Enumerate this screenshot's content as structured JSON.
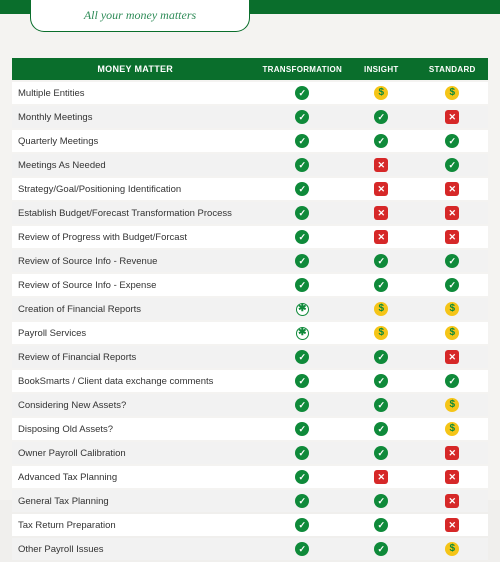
{
  "tagline": "All your money matters",
  "colors": {
    "brand_green": "#0a6e2c",
    "check_green": "#0f8a3a",
    "cross_red": "#d62828",
    "dollar_yellow": "#f5c518",
    "row_alt": "#f2f2f2",
    "row_bg": "#ffffff",
    "page_bg": "#f4f3f1"
  },
  "table": {
    "headers": {
      "label": "MONEY MATTER",
      "col1": "TRANSFORMATION",
      "col2": "INSIGHT",
      "col3": "STANDARD"
    },
    "icon_legend": {
      "check": "included",
      "cross": "not included",
      "dollar": "available for fee",
      "star": "special feature"
    },
    "rows": [
      {
        "label": "Multiple Entities",
        "c1": "check",
        "c2": "dollar",
        "c3": "dollar"
      },
      {
        "label": "Monthly Meetings",
        "c1": "check",
        "c2": "check",
        "c3": "cross"
      },
      {
        "label": "Quarterly Meetings",
        "c1": "check",
        "c2": "check",
        "c3": "check"
      },
      {
        "label": "Meetings As Needed",
        "c1": "check",
        "c2": "cross",
        "c3": "check"
      },
      {
        "label": "Strategy/Goal/Positioning Identification",
        "c1": "check",
        "c2": "cross",
        "c3": "cross"
      },
      {
        "label": "Establish Budget/Forecast Transformation Process",
        "c1": "check",
        "c2": "cross",
        "c3": "cross"
      },
      {
        "label": "Review of Progress with Budget/Forcast",
        "c1": "check",
        "c2": "cross",
        "c3": "cross"
      },
      {
        "label": "Review of Source Info - Revenue",
        "c1": "check",
        "c2": "check",
        "c3": "check"
      },
      {
        "label": "Review of Source Info - Expense",
        "c1": "check",
        "c2": "check",
        "c3": "check"
      },
      {
        "label": "Creation of Financial Reports",
        "c1": "star",
        "c2": "dollar",
        "c3": "dollar"
      },
      {
        "label": "Payroll Services",
        "c1": "star",
        "c2": "dollar",
        "c3": "dollar"
      },
      {
        "label": "Review of Financial Reports",
        "c1": "check",
        "c2": "check",
        "c3": "cross"
      },
      {
        "label": "BookSmarts / Client data exchange comments",
        "c1": "check",
        "c2": "check",
        "c3": "check"
      },
      {
        "label": "Considering New Assets?",
        "c1": "check",
        "c2": "check",
        "c3": "dollar"
      },
      {
        "label": "Disposing Old Assets?",
        "c1": "check",
        "c2": "check",
        "c3": "dollar"
      },
      {
        "label": "Owner Payroll Calibration",
        "c1": "check",
        "c2": "check",
        "c3": "cross"
      },
      {
        "label": "Advanced Tax Planning",
        "c1": "check",
        "c2": "cross",
        "c3": "cross"
      },
      {
        "label": "General Tax Planning",
        "c1": "check",
        "c2": "check",
        "c3": "cross"
      },
      {
        "label": "Tax Return Preparation",
        "c1": "check",
        "c2": "check",
        "c3": "cross"
      },
      {
        "label": "Other Payroll Issues",
        "c1": "check",
        "c2": "check",
        "c3": "dollar"
      }
    ]
  }
}
